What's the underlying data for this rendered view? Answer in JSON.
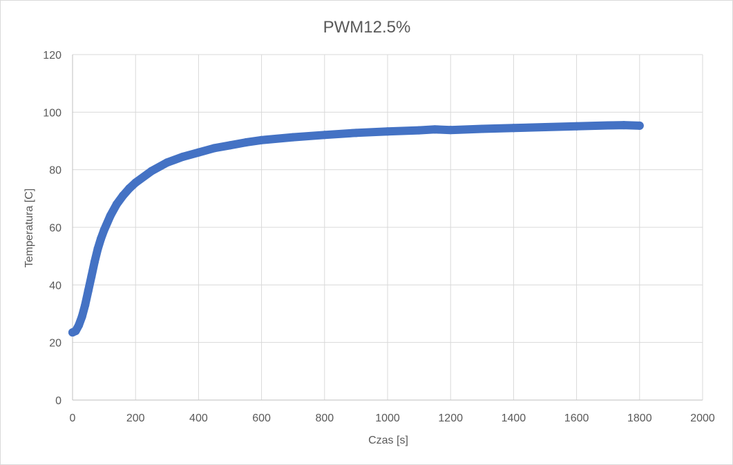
{
  "chart_data": {
    "type": "scatter",
    "title": "PWM12.5%",
    "xlabel": "Czas [s]",
    "ylabel": "Temperatura [C]",
    "xlim": [
      0,
      2000
    ],
    "ylim": [
      0,
      120
    ],
    "x_ticks": [
      "0",
      "200",
      "400",
      "600",
      "800",
      "1000",
      "1200",
      "1400",
      "1600",
      "1800",
      "2000"
    ],
    "y_ticks": [
      "0",
      "20",
      "40",
      "60",
      "80",
      "100",
      "120"
    ],
    "grid": true,
    "legend": false,
    "series_color": "#4472c4",
    "series": [
      {
        "x": [
          0,
          10,
          20,
          30,
          40,
          50,
          60,
          70,
          80,
          90,
          100,
          120,
          140,
          160,
          180,
          200,
          250,
          300,
          350,
          400,
          450,
          500,
          550,
          600,
          700,
          800,
          900,
          1000,
          1100,
          1150,
          1200,
          1300,
          1400,
          1500,
          1600,
          1700,
          1750,
          1800
        ],
        "y": [
          23.5,
          24,
          26,
          29,
          33,
          38,
          43,
          48,
          52.5,
          56,
          59,
          64,
          68,
          71,
          73.5,
          75.5,
          79.5,
          82.5,
          84.5,
          86,
          87.5,
          88.5,
          89.5,
          90.3,
          91.3,
          92.1,
          92.8,
          93.3,
          93.7,
          94,
          93.8,
          94.2,
          94.5,
          94.8,
          95.1,
          95.4,
          95.5,
          95.3
        ]
      }
    ]
  }
}
